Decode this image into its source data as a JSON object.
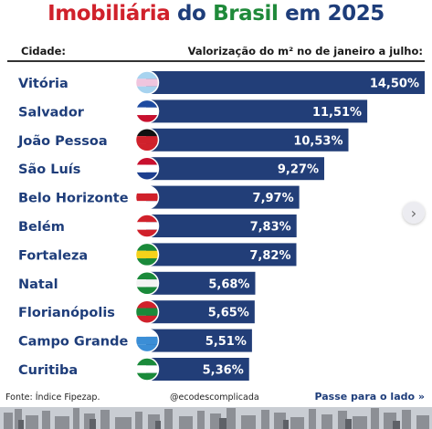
{
  "title": {
    "part1": "Imobiliária",
    "part2": "do",
    "part3": "Brasil",
    "part4": "em 2025",
    "colors": {
      "red": "#d0212b",
      "green": "#1f8a3a",
      "blue": "#1e3d7a"
    }
  },
  "header": {
    "left": "Cidade:",
    "right": "Valorização do m² no de janeiro a julho:"
  },
  "chart_data": {
    "type": "bar",
    "orientation": "horizontal",
    "categories": [
      "Vitória",
      "Salvador",
      "João Pessoa",
      "São Luís",
      "Belo Horizonte",
      "Belém",
      "Fortaleza",
      "Natal",
      "Florianópolis",
      "Campo Grande",
      "Curitiba"
    ],
    "values": [
      14.5,
      11.51,
      10.53,
      9.27,
      7.97,
      7.83,
      7.82,
      5.68,
      5.65,
      5.51,
      5.36
    ],
    "value_labels": [
      "14,50%",
      "11,51%",
      "10,53%",
      "9,27%",
      "7,97%",
      "7,83%",
      "7,82%",
      "5,68%",
      "5,65%",
      "5,51%",
      "5,36%"
    ],
    "bar_color": "#223e78",
    "xlim": [
      0,
      14.5
    ],
    "flag_icons": [
      "espirito-santo-flag-icon",
      "bahia-flag-icon",
      "paraiba-flag-icon",
      "maranhao-flag-icon",
      "minas-gerais-flag-icon",
      "para-flag-icon",
      "ceara-flag-icon",
      "rio-grande-do-norte-flag-icon",
      "santa-catarina-flag-icon",
      "mato-grosso-do-sul-flag-icon",
      "parana-flag-icon"
    ]
  },
  "footer": {
    "source": "Fonte: Índice Fipezap.",
    "handle": "@ecodescomplicada",
    "cta": "Passe para o lado",
    "cta_icon": "double-chevron-right-icon"
  },
  "next_icon": "chevron-right-icon"
}
